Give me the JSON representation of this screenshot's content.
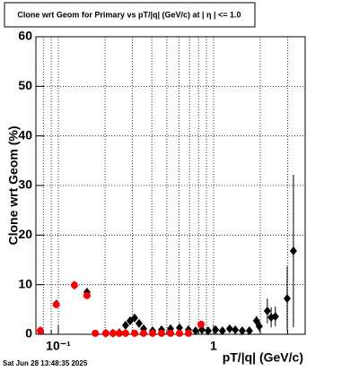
{
  "chart_data": {
    "type": "scatter",
    "title": "Clone wrt Geom for Primary vs pT/|q| (GeV/c) at |  η  | <= 1.0",
    "x_label": "pT/|q| (GeV/c)",
    "y_label": "Clone wrt Geom (%)",
    "footer": "Sat Jun 28 13:48:35 2025",
    "log_x": true,
    "grid": true,
    "xlim": [
      0.0717,
      3.89
    ],
    "ylim": [
      0,
      60
    ],
    "xticks": [
      {
        "value": 0.1,
        "label": "10⁻¹"
      },
      1
    ],
    "xminor": [
      0.08,
      0.09,
      0.2,
      0.3,
      0.4,
      0.5,
      0.6,
      0.7,
      0.8,
      0.9,
      2,
      3
    ],
    "yticks": [
      0,
      10,
      20,
      30,
      40,
      50,
      60
    ],
    "series": [
      {
        "color": "#000000",
        "marker": "diamond",
        "x": [
          0.0766,
          0.097,
          0.127,
          0.153,
          0.202,
          0.225,
          0.247,
          0.271,
          0.29,
          0.31,
          0.331,
          0.354,
          0.405,
          0.462,
          0.528,
          0.603,
          0.689,
          0.766,
          0.841,
          0.923,
          1.03,
          1.14,
          1.27,
          1.38,
          1.53,
          1.7,
          1.89,
          1.97,
          2.22,
          2.35,
          2.5,
          2.98,
          3.27
        ],
        "values": [
          0.7,
          6.1,
          9.9,
          8.5,
          0.2,
          0.2,
          0.3,
          1.8,
          2.7,
          3.3,
          2.2,
          1.1,
          0.7,
          0.9,
          1.1,
          1.3,
          0.9,
          0.7,
          0.9,
          0.7,
          0.9,
          0.7,
          1.1,
          0.9,
          0.7,
          0.7,
          2.7,
          1.6,
          4.7,
          3.4,
          3.6,
          7.2,
          16.8
        ],
        "errors": [
          null,
          null,
          null,
          null,
          null,
          null,
          null,
          null,
          null,
          null,
          null,
          null,
          null,
          null,
          null,
          null,
          null,
          null,
          null,
          null,
          null,
          null,
          null,
          null,
          null,
          null,
          1,
          1,
          2.5,
          2,
          2,
          6.5,
          15.4
        ]
      },
      {
        "color": "#ff0000",
        "marker": "circle",
        "x": [
          0.0766,
          0.097,
          0.127,
          0.153,
          0.173,
          0.202,
          0.225,
          0.247,
          0.271,
          0.31,
          0.354,
          0.405,
          0.462,
          0.528,
          0.603,
          0.689,
          0.83
        ],
        "values": [
          0.7,
          6.0,
          9.9,
          7.8,
          0.2,
          0.2,
          0.2,
          0.2,
          0.2,
          0.2,
          0.2,
          0.2,
          0.2,
          0.2,
          0.2,
          0.2,
          2.0
        ]
      }
    ]
  }
}
